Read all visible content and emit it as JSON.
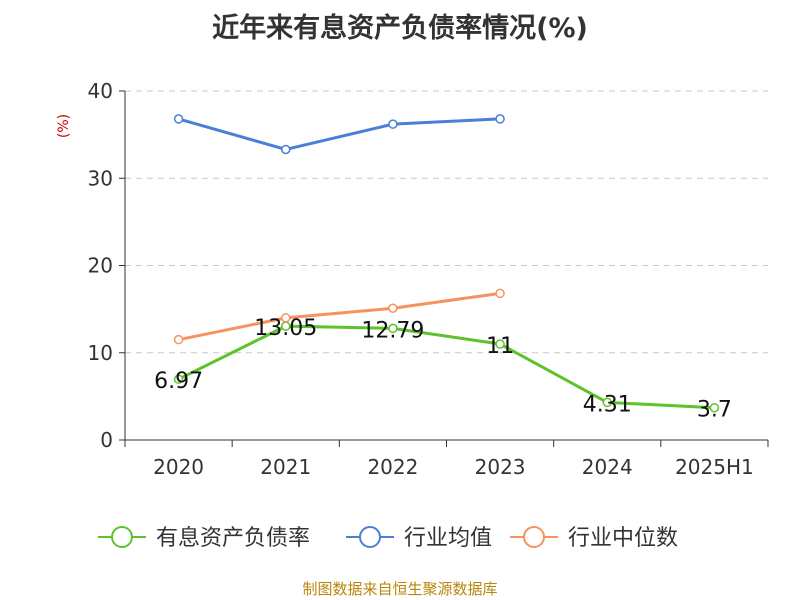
{
  "chart_data": {
    "type": "line",
    "title": "近年来有息资产负债率情况(%)",
    "ylabel": "(%)",
    "xlabel": "",
    "categories": [
      "2020",
      "2021",
      "2022",
      "2023",
      "2024",
      "2025H1"
    ],
    "ylim": [
      0,
      40
    ],
    "yticks": [
      0,
      10,
      20,
      30,
      40
    ],
    "grid": true,
    "legend_position": "bottom",
    "series": [
      {
        "name": "有息资产负债率",
        "color": "#5dc32b",
        "values": [
          6.97,
          13.05,
          12.79,
          11,
          4.31,
          3.7
        ],
        "labels": [
          "6.97",
          "13.05",
          "12.79",
          "11",
          "4.31",
          "3.7"
        ],
        "show_labels": true
      },
      {
        "name": "行业均值",
        "color": "#4a7fd8",
        "values": [
          36.8,
          33.3,
          36.2,
          36.8,
          null,
          null
        ],
        "show_labels": false
      },
      {
        "name": "行业中位数",
        "color": "#f79260",
        "values": [
          11.5,
          14.0,
          15.1,
          16.8,
          null,
          null
        ],
        "show_labels": false
      }
    ]
  },
  "footer": {
    "source": "制图数据来自恒生聚源数据库"
  }
}
